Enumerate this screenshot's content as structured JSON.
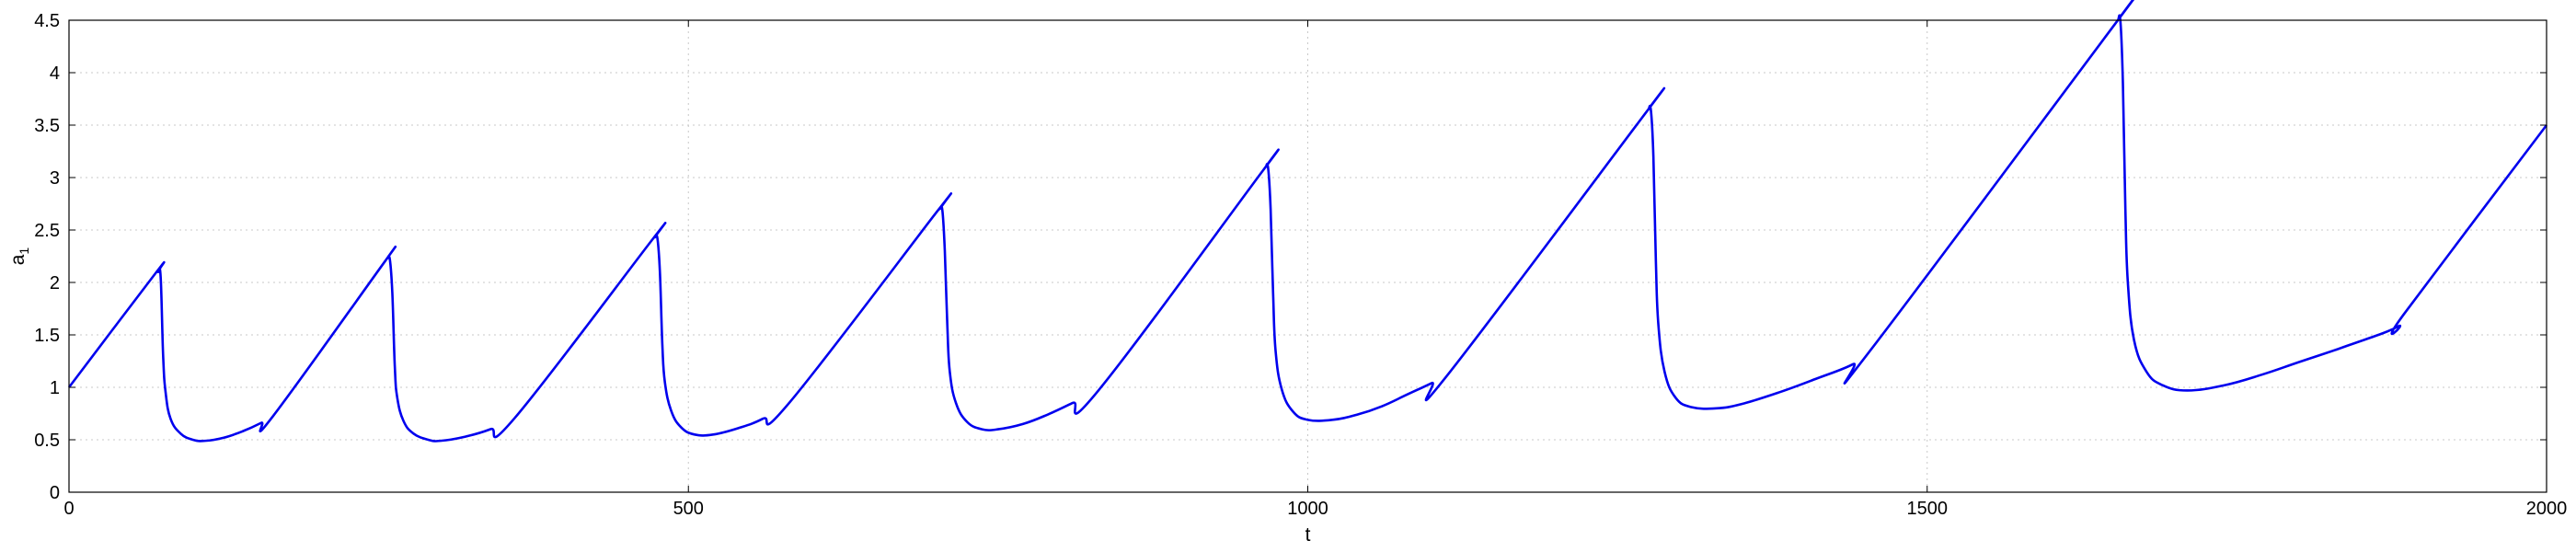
{
  "chart_data": {
    "type": "line",
    "title": "",
    "xlabel": "t",
    "ylabel": "a",
    "ylabel_subscript": "1",
    "xlim": [
      0,
      2000
    ],
    "ylim": [
      0,
      4.5
    ],
    "x_ticks": [
      0,
      500,
      1000,
      1500,
      2000
    ],
    "x_tick_labels": [
      "0",
      "500",
      "1000",
      "1500",
      "2000"
    ],
    "y_ticks": [
      0,
      0.5,
      1,
      1.5,
      2,
      2.5,
      3,
      3.5,
      4,
      4.5
    ],
    "y_tick_labels": [
      "0",
      "0.5",
      "1",
      "1.5",
      "2",
      "2.5",
      "3",
      "3.5",
      "4",
      "4.5"
    ],
    "grid": true,
    "grid_style": "dotted",
    "legend": "none",
    "series": [
      {
        "color": "#0000ee",
        "x": [
          0,
          70,
          72,
          74,
          76,
          78,
          82,
          90,
          100,
          110,
          125,
          140,
          155,
          165,
          255,
          257,
          259,
          261,
          263,
          265,
          270,
          278,
          290,
          300,
          320,
          340,
          360,
          471,
          473,
          475,
          477,
          479,
          481,
          486,
          494,
          505,
          520,
          540,
          560,
          582,
          701,
          703,
          705,
          707,
          709,
          711,
          716,
          725,
          737,
          750,
          770,
          790,
          810,
          831,
          964,
          966,
          968,
          970,
          972,
          974,
          979,
          988,
          1000,
          1020,
          1040,
          1060,
          1080,
          1100,
          1113,
          1273,
          1275,
          1277,
          1279,
          1281,
          1283,
          1288,
          1297,
          1310,
          1330,
          1350,
          1380,
          1410,
          1440,
          1454,
          1652,
          1654,
          1656,
          1658,
          1660,
          1662,
          1667,
          1677,
          1690,
          1710,
          1740,
          1770,
          1800,
          1840,
          1880,
          1885,
          2000
        ],
        "y": [
          1.0,
          2.09,
          2.1,
          2.05,
          1.3,
          0.95,
          0.7,
          0.56,
          0.5,
          0.49,
          0.52,
          0.58,
          0.66,
          0.73,
          2.2,
          2.23,
          2.22,
          1.9,
          1.2,
          0.9,
          0.68,
          0.56,
          0.5,
          0.49,
          0.53,
          0.6,
          0.71,
          2.41,
          2.43,
          2.42,
          2.1,
          1.4,
          1.05,
          0.78,
          0.62,
          0.55,
          0.55,
          0.61,
          0.7,
          0.86,
          2.68,
          2.7,
          2.69,
          2.3,
          1.6,
          1.15,
          0.85,
          0.67,
          0.6,
          0.6,
          0.65,
          0.74,
          0.85,
          0.97,
          3.07,
          3.1,
          3.09,
          2.7,
          1.9,
          1.35,
          0.98,
          0.77,
          0.69,
          0.69,
          0.74,
          0.82,
          0.93,
          1.04,
          1.12,
          3.62,
          3.65,
          3.64,
          3.2,
          2.2,
          1.6,
          1.15,
          0.9,
          0.81,
          0.8,
          0.84,
          0.95,
          1.08,
          1.22,
          1.35,
          4.47,
          4.5,
          4.49,
          3.9,
          2.7,
          2.0,
          1.45,
          1.15,
          1.02,
          0.97,
          1.02,
          1.12,
          1.24,
          1.4,
          1.58,
          1.7,
          3.5
        ]
      }
    ]
  }
}
